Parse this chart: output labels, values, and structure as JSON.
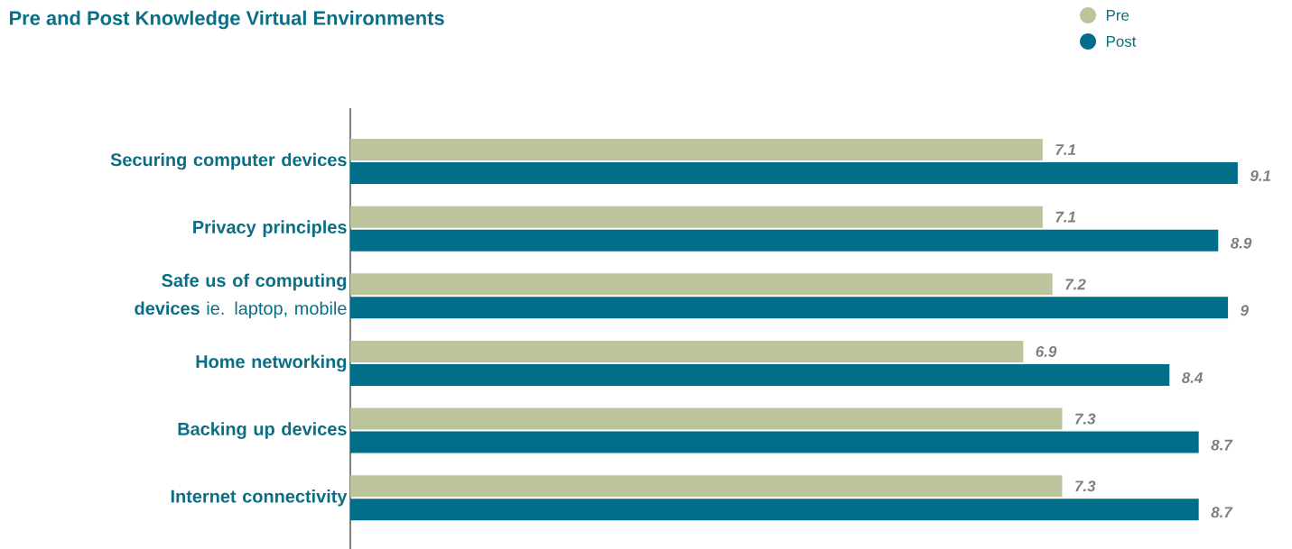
{
  "chart_data": {
    "type": "bar",
    "orientation": "horizontal",
    "title": "Pre and Post Knowledge Virtual Environments",
    "categories": [
      "**Securing computer devices**",
      "**Privacy principles**",
      "**Safe us of computing devices** ie. laptop, mobile",
      "**Home networking**",
      "**Backing up devices**",
      "**Internet connectivity**"
    ],
    "series": [
      {
        "name": "Pre",
        "color": "#bcc49c",
        "values": [
          7.1,
          7.1,
          7.2,
          6.9,
          7.3,
          7.3
        ]
      },
      {
        "name": "Post",
        "color": "#006e88",
        "values": [
          9.1,
          8.9,
          9,
          8.4,
          8.7,
          8.7
        ]
      }
    ],
    "tick_labels": "y",
    "legend": "top right",
    "data_labels": true
  }
}
